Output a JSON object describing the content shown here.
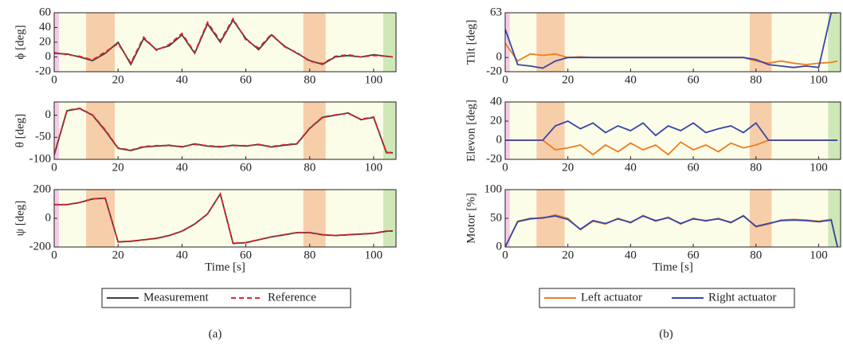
{
  "panel_labels": [
    "(a)",
    "(b)"
  ],
  "phases": [
    {
      "start": 0,
      "end": 1.5,
      "color": "#f4cce6"
    },
    {
      "start": 1.5,
      "end": 10,
      "color": "#fcfde8"
    },
    {
      "start": 10,
      "end": 19,
      "color": "#f7ceaa"
    },
    {
      "start": 19,
      "end": 78,
      "color": "#fcfde8"
    },
    {
      "start": 78,
      "end": 85,
      "color": "#f7ceaa"
    },
    {
      "start": 85,
      "end": 103,
      "color": "#fcfde8"
    },
    {
      "start": 103,
      "end": 107,
      "color": "#cfe8b8"
    }
  ],
  "chart_data": [
    {
      "type": "line",
      "ylabel": "ϕ [deg]",
      "xlim": [
        0,
        107
      ],
      "xticks": [
        0,
        20,
        40,
        60,
        80,
        100
      ],
      "ylim": [
        -20,
        60
      ],
      "yticks": [
        -20,
        0,
        20,
        40,
        60
      ],
      "x": [
        0,
        4,
        8,
        12,
        16,
        20,
        24,
        28,
        32,
        36,
        40,
        44,
        48,
        52,
        56,
        60,
        64,
        68,
        72,
        76,
        80,
        84,
        88,
        92,
        96,
        100,
        104,
        106
      ],
      "series": [
        {
          "color": "#404040",
          "values": [
            5,
            4,
            0,
            -5,
            5,
            20,
            -10,
            25,
            10,
            15,
            30,
            5,
            45,
            20,
            50,
            25,
            10,
            30,
            15,
            5,
            -5,
            -10,
            0,
            2,
            0,
            3,
            1,
            0
          ]
        },
        {
          "color": "#e8202a",
          "dash": true,
          "values": [
            6,
            3,
            1,
            -4,
            7,
            18,
            -8,
            27,
            9,
            17,
            32,
            6,
            47,
            22,
            52,
            23,
            12,
            31,
            14,
            6,
            -6,
            -9,
            1,
            3,
            0,
            2,
            1,
            0
          ]
        }
      ]
    },
    {
      "type": "line",
      "ylabel": "θ [deg]",
      "xlim": [
        0,
        107
      ],
      "xticks": [
        0,
        20,
        40,
        60,
        80,
        100
      ],
      "ylim": [
        -100,
        30
      ],
      "yticks": [
        -100,
        -50,
        0
      ],
      "x": [
        0,
        4,
        8,
        12,
        16,
        20,
        24,
        28,
        32,
        36,
        40,
        44,
        48,
        52,
        56,
        60,
        64,
        68,
        72,
        76,
        80,
        84,
        88,
        92,
        96,
        100,
        104,
        106
      ],
      "series": [
        {
          "color": "#404040",
          "values": [
            -90,
            10,
            15,
            0,
            -35,
            -75,
            -80,
            -72,
            -70,
            -68,
            -72,
            -65,
            -70,
            -72,
            -68,
            -70,
            -66,
            -72,
            -68,
            -65,
            -30,
            -5,
            0,
            5,
            -10,
            -5,
            -85,
            -85
          ]
        },
        {
          "color": "#e8202a",
          "dash": true,
          "values": [
            -88,
            11,
            16,
            1,
            -33,
            -74,
            -79,
            -71,
            -69,
            -69,
            -71,
            -66,
            -69,
            -71,
            -69,
            -69,
            -67,
            -71,
            -67,
            -64,
            -29,
            -4,
            1,
            4,
            -9,
            -4,
            -84,
            -85
          ]
        }
      ]
    },
    {
      "type": "line",
      "ylabel": "ψ [deg]",
      "xlabel": "Time [s]",
      "legend": "below",
      "xlim": [
        0,
        107
      ],
      "xticks": [
        0,
        20,
        40,
        60,
        80,
        100
      ],
      "ylim": [
        -200,
        200
      ],
      "yticks": [
        -200,
        0,
        200
      ],
      "x": [
        0,
        4,
        8,
        12,
        16,
        20,
        24,
        28,
        32,
        36,
        40,
        44,
        48,
        52,
        56,
        60,
        64,
        68,
        72,
        76,
        80,
        84,
        88,
        92,
        96,
        100,
        104,
        106
      ],
      "series": [
        {
          "name": "Measurement",
          "color": "#404040",
          "values": [
            95,
            95,
            110,
            135,
            140,
            -165,
            -160,
            -150,
            -140,
            -120,
            -90,
            -40,
            30,
            170,
            -175,
            -170,
            -150,
            -130,
            -115,
            -100,
            -100,
            -115,
            -120,
            -115,
            -110,
            -105,
            -90,
            -88
          ]
        },
        {
          "name": "Reference",
          "color": "#e8202a",
          "dash": true,
          "values": [
            96,
            96,
            111,
            136,
            141,
            -164,
            -159,
            -149,
            -139,
            -119,
            -89,
            -39,
            31,
            171,
            -174,
            -169,
            -149,
            -129,
            -114,
            -99,
            -99,
            -114,
            -119,
            -114,
            -109,
            -104,
            -89,
            -88
          ]
        }
      ]
    },
    {
      "type": "line",
      "ylabel": "Tilt [deg]",
      "xlim": [
        0,
        107
      ],
      "xticks": [
        0,
        20,
        40,
        60,
        80,
        100
      ],
      "ylim": [
        -20,
        63
      ],
      "yticks": [
        -20,
        0,
        63
      ],
      "x": [
        0,
        4,
        8,
        12,
        16,
        20,
        24,
        28,
        32,
        36,
        40,
        44,
        48,
        52,
        56,
        60,
        64,
        68,
        72,
        76,
        80,
        84,
        88,
        92,
        96,
        100,
        104,
        106
      ],
      "series": [
        {
          "color": "#ee7d22",
          "values": [
            20,
            -5,
            5,
            3,
            5,
            0,
            1,
            0,
            0,
            0,
            0,
            0,
            0,
            0,
            0,
            0,
            0,
            0,
            0,
            0,
            -5,
            -8,
            -5,
            -8,
            -10,
            -8,
            -7,
            -5
          ]
        },
        {
          "color": "#3646a8",
          "values": [
            40,
            -10,
            -12,
            -15,
            -5,
            0,
            0,
            0,
            0,
            0,
            0,
            0,
            0,
            0,
            0,
            0,
            0,
            0,
            0,
            0,
            -3,
            -10,
            -12,
            -14,
            -12,
            -14,
            63,
            63
          ]
        }
      ]
    },
    {
      "type": "line",
      "ylabel": "Elevon [deg]",
      "xlim": [
        0,
        107
      ],
      "xticks": [
        0,
        20,
        40,
        60,
        80,
        100
      ],
      "ylim": [
        -20,
        40
      ],
      "yticks": [
        -20,
        0,
        20,
        40
      ],
      "x": [
        0,
        4,
        8,
        12,
        16,
        20,
        24,
        28,
        32,
        36,
        40,
        44,
        48,
        52,
        56,
        60,
        64,
        68,
        72,
        76,
        80,
        84,
        88,
        92,
        96,
        100,
        104,
        106
      ],
      "series": [
        {
          "color": "#ee7d22",
          "values": [
            0,
            0,
            0,
            0,
            -10,
            -8,
            -5,
            -15,
            -5,
            -12,
            -3,
            -10,
            -5,
            -15,
            -2,
            -10,
            -5,
            -12,
            -3,
            -8,
            -5,
            0,
            0,
            0,
            0,
            0,
            0,
            0
          ]
        },
        {
          "color": "#3646a8",
          "values": [
            0,
            0,
            0,
            0,
            15,
            20,
            12,
            18,
            8,
            15,
            10,
            18,
            5,
            15,
            10,
            18,
            8,
            12,
            15,
            8,
            18,
            0,
            0,
            0,
            0,
            0,
            0,
            0
          ]
        }
      ]
    },
    {
      "type": "line",
      "ylabel": "Motor [%]",
      "xlabel": "Time [s]",
      "legend": "below",
      "xlim": [
        0,
        107
      ],
      "xticks": [
        0,
        20,
        40,
        60,
        80,
        100
      ],
      "ylim": [
        0,
        100
      ],
      "yticks": [
        0,
        50,
        100
      ],
      "x": [
        0,
        4,
        8,
        12,
        16,
        20,
        24,
        28,
        32,
        36,
        40,
        44,
        48,
        52,
        56,
        60,
        64,
        68,
        72,
        76,
        80,
        84,
        88,
        92,
        96,
        100,
        104,
        106
      ],
      "series": [
        {
          "name": "Left actuator",
          "color": "#ee7d22",
          "values": [
            0,
            45,
            50,
            50,
            56,
            50,
            30,
            45,
            40,
            50,
            42,
            55,
            45,
            52,
            40,
            50,
            45,
            50,
            42,
            55,
            35,
            40,
            47,
            48,
            47,
            45,
            48,
            0
          ]
        },
        {
          "name": "Right actuator",
          "color": "#3646a8",
          "values": [
            0,
            44,
            49,
            51,
            54,
            48,
            31,
            46,
            41,
            49,
            43,
            54,
            46,
            51,
            41,
            49,
            46,
            49,
            43,
            54,
            36,
            41,
            46,
            47,
            46,
            44,
            47,
            0
          ]
        }
      ]
    }
  ]
}
